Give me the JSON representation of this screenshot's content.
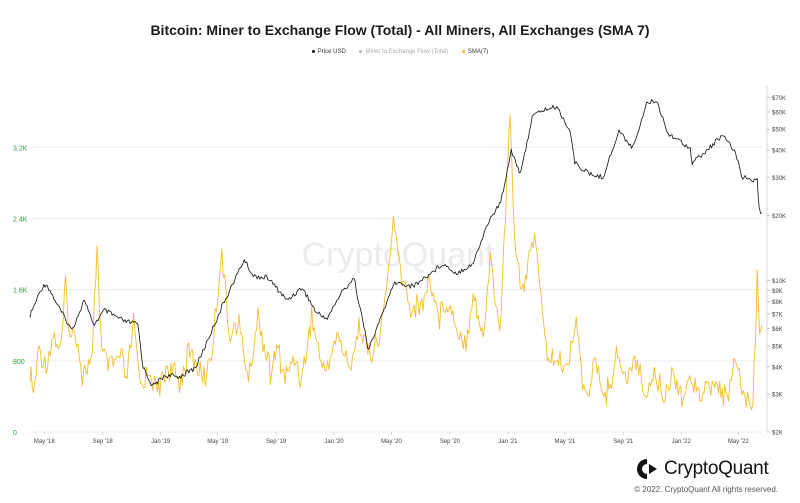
{
  "chart_data": {
    "type": "line",
    "title": "Bitcoin: Miner to Exchange Flow (Total) - All Miners, All Exchanges (SMA 7)",
    "legend": [
      {
        "label": "Price USD",
        "color": "#111111",
        "visible": true
      },
      {
        "label": "Miner to Exchange Flow (Total)",
        "color": "#b8b8b8",
        "visible": false
      },
      {
        "label": "SMA(7)",
        "color": "#f5bd2b",
        "visible": true
      }
    ],
    "legend_position": "top-center",
    "x_ticks": [
      "May '18",
      "Sep '18",
      "Jan '19",
      "May '19",
      "Sep '19",
      "Jan '20",
      "May '20",
      "Sep '20",
      "Jan '21",
      "May '21",
      "Sep '21",
      "Jan '22",
      "May '22"
    ],
    "x_range": [
      "2018-04-01",
      "2022-06-20"
    ],
    "y_left": {
      "ticks": [
        "0",
        "800",
        "1.6K",
        "2.4K",
        "3.2K"
      ],
      "tick_values": [
        0,
        800,
        1600,
        2400,
        3200
      ],
      "range": [
        0,
        3900
      ],
      "color": "#2ea043"
    },
    "y_right": {
      "scale": "log",
      "ticks": [
        "$2K",
        "$3K",
        "$4K",
        "$5K",
        "$6K",
        "$7K",
        "$8K",
        "$9K",
        "$10K",
        "$20K",
        "$30K",
        "$40K",
        "$50K",
        "$60K",
        "$70K"
      ],
      "tick_values": [
        2000,
        3000,
        4000,
        5000,
        6000,
        7000,
        8000,
        9000,
        10000,
        20000,
        30000,
        40000,
        50000,
        60000,
        70000
      ],
      "range": [
        2000,
        80000
      ]
    },
    "grid": true,
    "series": [
      {
        "name": "Price USD",
        "axis": "right",
        "color": "#111111",
        "points": [
          [
            "2018-04-01",
            6900
          ],
          [
            "2018-04-25",
            9200
          ],
          [
            "2018-05-05",
            9700
          ],
          [
            "2018-06-01",
            7500
          ],
          [
            "2018-06-28",
            5900
          ],
          [
            "2018-07-25",
            8200
          ],
          [
            "2018-08-12",
            6200
          ],
          [
            "2018-09-05",
            7300
          ],
          [
            "2018-10-15",
            6500
          ],
          [
            "2018-11-14",
            6300
          ],
          [
            "2018-11-25",
            4000
          ],
          [
            "2018-12-15",
            3250
          ],
          [
            "2019-01-10",
            3650
          ],
          [
            "2019-02-10",
            3600
          ],
          [
            "2019-03-15",
            3950
          ],
          [
            "2019-04-05",
            5000
          ],
          [
            "2019-05-15",
            8000
          ],
          [
            "2019-06-26",
            12500
          ],
          [
            "2019-07-15",
            10500
          ],
          [
            "2019-08-15",
            10300
          ],
          [
            "2019-09-24",
            8100
          ],
          [
            "2019-10-26",
            9300
          ],
          [
            "2019-11-25",
            7100
          ],
          [
            "2019-12-18",
            6700
          ],
          [
            "2020-01-15",
            8700
          ],
          [
            "2020-02-12",
            10300
          ],
          [
            "2020-03-12",
            5000
          ],
          [
            "2020-03-16",
            4900
          ],
          [
            "2020-04-10",
            6900
          ],
          [
            "2020-05-08",
            9800
          ],
          [
            "2020-06-15",
            9400
          ],
          [
            "2020-07-27",
            11000
          ],
          [
            "2020-08-17",
            12000
          ],
          [
            "2020-09-15",
            10800
          ],
          [
            "2020-10-20",
            12000
          ],
          [
            "2020-11-20",
            18500
          ],
          [
            "2020-12-17",
            23000
          ],
          [
            "2021-01-08",
            40000
          ],
          [
            "2021-01-28",
            31000
          ],
          [
            "2021-02-21",
            57000
          ],
          [
            "2021-03-13",
            61000
          ],
          [
            "2021-04-14",
            63500
          ],
          [
            "2021-05-12",
            49000
          ],
          [
            "2021-05-22",
            35000
          ],
          [
            "2021-06-22",
            31000
          ],
          [
            "2021-07-20",
            30000
          ],
          [
            "2021-08-23",
            49000
          ],
          [
            "2021-09-21",
            41000
          ],
          [
            "2021-10-20",
            66000
          ],
          [
            "2021-11-10",
            68000
          ],
          [
            "2021-12-04",
            48000
          ],
          [
            "2022-01-20",
            41000
          ],
          [
            "2022-01-24",
            35000
          ],
          [
            "2022-02-20",
            39000
          ],
          [
            "2022-03-28",
            47000
          ],
          [
            "2022-04-25",
            39000
          ],
          [
            "2022-05-10",
            30000
          ],
          [
            "2022-06-10",
            29000
          ],
          [
            "2022-06-14",
            21500
          ],
          [
            "2022-06-20",
            20500
          ]
        ]
      },
      {
        "name": "SMA(7)",
        "axis": "left",
        "color": "#f5bd2b",
        "points": [
          [
            "2018-04-01",
            700
          ],
          [
            "2018-04-08",
            420
          ],
          [
            "2018-04-20",
            950
          ],
          [
            "2018-05-05",
            750
          ],
          [
            "2018-05-20",
            1100
          ],
          [
            "2018-06-05",
            900
          ],
          [
            "2018-06-15",
            1650
          ],
          [
            "2018-06-25",
            1000
          ],
          [
            "2018-07-05",
            1200
          ],
          [
            "2018-07-20",
            650
          ],
          [
            "2018-08-10",
            800
          ],
          [
            "2018-08-20",
            2100
          ],
          [
            "2018-08-30",
            900
          ],
          [
            "2018-09-15",
            700
          ],
          [
            "2018-10-10",
            850
          ],
          [
            "2018-10-20",
            550
          ],
          [
            "2018-11-05",
            1200
          ],
          [
            "2018-11-20",
            500
          ],
          [
            "2018-12-10",
            700
          ],
          [
            "2018-12-25",
            450
          ],
          [
            "2019-01-15",
            750
          ],
          [
            "2019-02-10",
            560
          ],
          [
            "2019-03-01",
            900
          ],
          [
            "2019-04-05",
            600
          ],
          [
            "2019-04-20",
            950
          ],
          [
            "2019-05-10",
            2050
          ],
          [
            "2019-05-25",
            1100
          ],
          [
            "2019-06-15",
            1200
          ],
          [
            "2019-07-05",
            600
          ],
          [
            "2019-07-25",
            1300
          ],
          [
            "2019-08-20",
            650
          ],
          [
            "2019-09-05",
            950
          ],
          [
            "2019-09-20",
            600
          ],
          [
            "2019-10-10",
            850
          ],
          [
            "2019-10-25",
            600
          ],
          [
            "2019-11-15",
            1300
          ],
          [
            "2019-12-10",
            650
          ],
          [
            "2020-01-10",
            1100
          ],
          [
            "2020-02-01",
            700
          ],
          [
            "2020-02-25",
            1200
          ],
          [
            "2020-03-15",
            850
          ],
          [
            "2020-04-05",
            1000
          ],
          [
            "2020-04-20",
            1600
          ],
          [
            "2020-05-05",
            2350
          ],
          [
            "2020-05-20",
            1800
          ],
          [
            "2020-06-10",
            1400
          ],
          [
            "2020-07-01",
            1400
          ],
          [
            "2020-07-20",
            1700
          ],
          [
            "2020-08-10",
            1300
          ],
          [
            "2020-08-25",
            1500
          ],
          [
            "2020-09-15",
            1200
          ],
          [
            "2020-10-05",
            1000
          ],
          [
            "2020-10-20",
            1600
          ],
          [
            "2020-11-10",
            1000
          ],
          [
            "2020-11-25",
            2000
          ],
          [
            "2020-12-15",
            1100
          ],
          [
            "2020-12-30",
            2800
          ],
          [
            "2021-01-06",
            3650
          ],
          [
            "2021-01-15",
            2200
          ],
          [
            "2021-01-30",
            1600
          ],
          [
            "2021-02-15",
            1900
          ],
          [
            "2021-03-01",
            2250
          ],
          [
            "2021-03-15",
            1250
          ],
          [
            "2021-03-25",
            850
          ],
          [
            "2021-04-15",
            800
          ],
          [
            "2021-05-05",
            700
          ],
          [
            "2021-05-25",
            1300
          ],
          [
            "2021-06-10",
            400
          ],
          [
            "2021-07-05",
            750
          ],
          [
            "2021-07-25",
            380
          ],
          [
            "2021-08-20",
            900
          ],
          [
            "2021-09-10",
            520
          ],
          [
            "2021-09-25",
            900
          ],
          [
            "2021-10-15",
            440
          ],
          [
            "2021-11-05",
            660
          ],
          [
            "2021-11-25",
            400
          ],
          [
            "2021-12-15",
            680
          ],
          [
            "2022-01-05",
            400
          ],
          [
            "2022-01-25",
            620
          ],
          [
            "2022-02-15",
            420
          ],
          [
            "2022-03-10",
            550
          ],
          [
            "2022-04-05",
            400
          ],
          [
            "2022-04-25",
            750
          ],
          [
            "2022-05-15",
            380
          ],
          [
            "2022-06-01",
            340
          ],
          [
            "2022-06-06",
            1000
          ],
          [
            "2022-06-10",
            1800
          ],
          [
            "2022-06-15",
            1200
          ],
          [
            "2022-06-20",
            1200
          ]
        ]
      }
    ]
  },
  "watermark": "CryptoQuant",
  "brand": {
    "name": "CryptoQuant"
  },
  "footer": {
    "copyright": "© 2022. CryptoQuant All rights reserved."
  }
}
